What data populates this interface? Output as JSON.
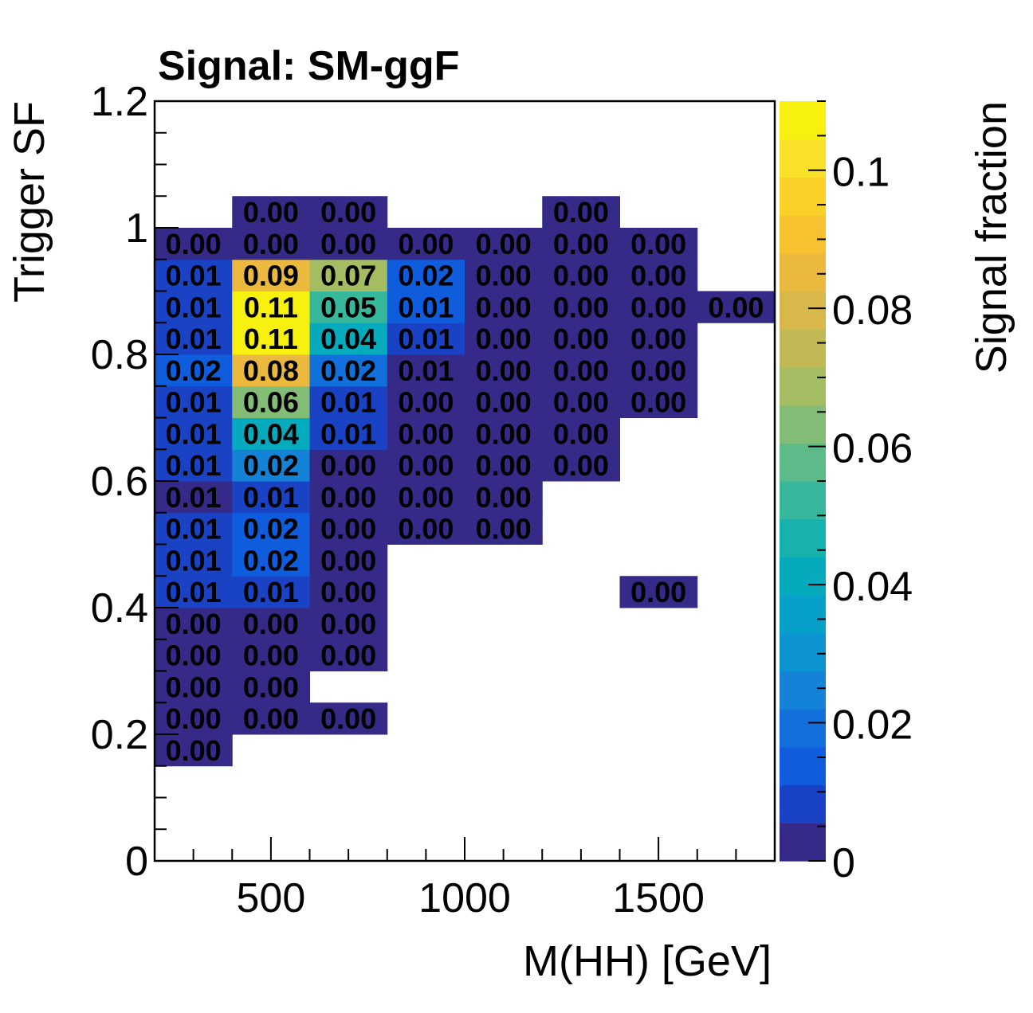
{
  "chart_data": {
    "type": "heatmap",
    "title": "Signal: SM-ggF",
    "xlabel": "M(HH) [GeV]",
    "ylabel": "Trigger SF",
    "zlabel": "Signal fraction",
    "xlim": [
      200,
      1800
    ],
    "ylim": [
      0,
      1.2
    ],
    "zlim": [
      0,
      0.11
    ],
    "x_bin_edges": [
      200,
      400,
      600,
      800,
      1000,
      1200,
      1400,
      1600,
      1800
    ],
    "y_bin_width": 0.05,
    "x_ticks": [
      500,
      1000,
      1500
    ],
    "x_tick_labels": [
      "500",
      "1000",
      "1500"
    ],
    "y_ticks": [
      0,
      0.2,
      0.4,
      0.6,
      0.8,
      1,
      1.2
    ],
    "y_tick_labels": [
      "0",
      "0.2",
      "0.4",
      "0.6",
      "0.8",
      "1",
      "1.2"
    ],
    "z_ticks": [
      0,
      0.02,
      0.04,
      0.06,
      0.08,
      0.1
    ],
    "z_tick_labels": [
      "0",
      "0.02",
      "0.04",
      "0.06",
      "0.08",
      "0.1"
    ],
    "palette": [
      "#352a87",
      "#1a42c5",
      "#0f5cdd",
      "#1270dc",
      "#1382d7",
      "#0b93d2",
      "#07a0c9",
      "#05aabd",
      "#17b2ad",
      "#37b89c",
      "#5cbb88",
      "#82bc75",
      "#a4bc62",
      "#c1b956",
      "#d8b84b",
      "#ebb93d",
      "#f6c22f",
      "#fbd128",
      "#f9e12a",
      "#f8f00f"
    ],
    "cells": [
      {
        "x": 300,
        "y": 0.175,
        "value": 0.002,
        "label": "0.00"
      },
      {
        "x": 300,
        "y": 0.225,
        "value": 0.002,
        "label": "0.00"
      },
      {
        "x": 500,
        "y": 0.225,
        "value": 0.002,
        "label": "0.00"
      },
      {
        "x": 700,
        "y": 0.225,
        "value": 0.002,
        "label": "0.00"
      },
      {
        "x": 300,
        "y": 0.275,
        "value": 0.002,
        "label": "0.00"
      },
      {
        "x": 500,
        "y": 0.275,
        "value": 0.002,
        "label": "0.00"
      },
      {
        "x": 300,
        "y": 0.325,
        "value": 0.002,
        "label": "0.00"
      },
      {
        "x": 500,
        "y": 0.325,
        "value": 0.002,
        "label": "0.00"
      },
      {
        "x": 700,
        "y": 0.325,
        "value": 0.002,
        "label": "0.00"
      },
      {
        "x": 300,
        "y": 0.375,
        "value": 0.002,
        "label": "0.00"
      },
      {
        "x": 500,
        "y": 0.375,
        "value": 0.002,
        "label": "0.00"
      },
      {
        "x": 700,
        "y": 0.375,
        "value": 0.002,
        "label": "0.00"
      },
      {
        "x": 300,
        "y": 0.425,
        "value": 0.008,
        "label": "0.01"
      },
      {
        "x": 500,
        "y": 0.425,
        "value": 0.008,
        "label": "0.01"
      },
      {
        "x": 700,
        "y": 0.425,
        "value": 0.002,
        "label": "0.00"
      },
      {
        "x": 1500,
        "y": 0.425,
        "value": 0.002,
        "label": "0.00"
      },
      {
        "x": 300,
        "y": 0.475,
        "value": 0.011,
        "label": "0.01"
      },
      {
        "x": 500,
        "y": 0.475,
        "value": 0.015,
        "label": "0.02"
      },
      {
        "x": 700,
        "y": 0.475,
        "value": 0.002,
        "label": "0.00"
      },
      {
        "x": 300,
        "y": 0.525,
        "value": 0.011,
        "label": "0.01"
      },
      {
        "x": 500,
        "y": 0.525,
        "value": 0.015,
        "label": "0.02"
      },
      {
        "x": 700,
        "y": 0.525,
        "value": 0.002,
        "label": "0.00"
      },
      {
        "x": 900,
        "y": 0.525,
        "value": 0.002,
        "label": "0.00"
      },
      {
        "x": 1100,
        "y": 0.525,
        "value": 0.002,
        "label": "0.00"
      },
      {
        "x": 300,
        "y": 0.575,
        "value": 0.005,
        "label": "0.01"
      },
      {
        "x": 500,
        "y": 0.575,
        "value": 0.01,
        "label": "0.01"
      },
      {
        "x": 700,
        "y": 0.575,
        "value": 0.002,
        "label": "0.00"
      },
      {
        "x": 900,
        "y": 0.575,
        "value": 0.002,
        "label": "0.00"
      },
      {
        "x": 1100,
        "y": 0.575,
        "value": 0.002,
        "label": "0.00"
      },
      {
        "x": 300,
        "y": 0.625,
        "value": 0.01,
        "label": "0.01"
      },
      {
        "x": 500,
        "y": 0.625,
        "value": 0.024,
        "label": "0.02"
      },
      {
        "x": 700,
        "y": 0.625,
        "value": 0.002,
        "label": "0.00"
      },
      {
        "x": 900,
        "y": 0.625,
        "value": 0.002,
        "label": "0.00"
      },
      {
        "x": 1100,
        "y": 0.625,
        "value": 0.002,
        "label": "0.00"
      },
      {
        "x": 1300,
        "y": 0.625,
        "value": 0.002,
        "label": "0.00"
      },
      {
        "x": 300,
        "y": 0.675,
        "value": 0.011,
        "label": "0.01"
      },
      {
        "x": 500,
        "y": 0.675,
        "value": 0.044,
        "label": "0.04"
      },
      {
        "x": 700,
        "y": 0.675,
        "value": 0.008,
        "label": "0.01"
      },
      {
        "x": 900,
        "y": 0.675,
        "value": 0.002,
        "label": "0.00"
      },
      {
        "x": 1100,
        "y": 0.675,
        "value": 0.002,
        "label": "0.00"
      },
      {
        "x": 1300,
        "y": 0.675,
        "value": 0.002,
        "label": "0.00"
      },
      {
        "x": 300,
        "y": 0.725,
        "value": 0.011,
        "label": "0.01"
      },
      {
        "x": 500,
        "y": 0.725,
        "value": 0.063,
        "label": "0.06"
      },
      {
        "x": 700,
        "y": 0.725,
        "value": 0.011,
        "label": "0.01"
      },
      {
        "x": 900,
        "y": 0.725,
        "value": 0.002,
        "label": "0.00"
      },
      {
        "x": 1100,
        "y": 0.725,
        "value": 0.002,
        "label": "0.00"
      },
      {
        "x": 1300,
        "y": 0.725,
        "value": 0.002,
        "label": "0.00"
      },
      {
        "x": 1500,
        "y": 0.725,
        "value": 0.002,
        "label": "0.00"
      },
      {
        "x": 300,
        "y": 0.775,
        "value": 0.016,
        "label": "0.02"
      },
      {
        "x": 500,
        "y": 0.775,
        "value": 0.083,
        "label": "0.08"
      },
      {
        "x": 700,
        "y": 0.775,
        "value": 0.02,
        "label": "0.02"
      },
      {
        "x": 900,
        "y": 0.775,
        "value": 0.005,
        "label": "0.01"
      },
      {
        "x": 1100,
        "y": 0.775,
        "value": 0.002,
        "label": "0.00"
      },
      {
        "x": 1300,
        "y": 0.775,
        "value": 0.002,
        "label": "0.00"
      },
      {
        "x": 1500,
        "y": 0.775,
        "value": 0.002,
        "label": "0.00"
      },
      {
        "x": 300,
        "y": 0.825,
        "value": 0.011,
        "label": "0.01"
      },
      {
        "x": 500,
        "y": 0.825,
        "value": 0.108,
        "label": "0.11"
      },
      {
        "x": 700,
        "y": 0.825,
        "value": 0.04,
        "label": "0.04"
      },
      {
        "x": 900,
        "y": 0.825,
        "value": 0.008,
        "label": "0.01"
      },
      {
        "x": 1100,
        "y": 0.825,
        "value": 0.002,
        "label": "0.00"
      },
      {
        "x": 1300,
        "y": 0.825,
        "value": 0.002,
        "label": "0.00"
      },
      {
        "x": 1500,
        "y": 0.825,
        "value": 0.002,
        "label": "0.00"
      },
      {
        "x": 300,
        "y": 0.875,
        "value": 0.011,
        "label": "0.01"
      },
      {
        "x": 500,
        "y": 0.875,
        "value": 0.108,
        "label": "0.11"
      },
      {
        "x": 700,
        "y": 0.875,
        "value": 0.052,
        "label": "0.05"
      },
      {
        "x": 900,
        "y": 0.875,
        "value": 0.013,
        "label": "0.01"
      },
      {
        "x": 1100,
        "y": 0.875,
        "value": 0.002,
        "label": "0.00"
      },
      {
        "x": 1300,
        "y": 0.875,
        "value": 0.002,
        "label": "0.00"
      },
      {
        "x": 1500,
        "y": 0.875,
        "value": 0.002,
        "label": "0.00"
      },
      {
        "x": 1700,
        "y": 0.875,
        "value": 0.002,
        "label": "0.00"
      },
      {
        "x": 300,
        "y": 0.925,
        "value": 0.011,
        "label": "0.01"
      },
      {
        "x": 500,
        "y": 0.925,
        "value": 0.088,
        "label": "0.09"
      },
      {
        "x": 700,
        "y": 0.925,
        "value": 0.071,
        "label": "0.07"
      },
      {
        "x": 900,
        "y": 0.925,
        "value": 0.016,
        "label": "0.02"
      },
      {
        "x": 1100,
        "y": 0.925,
        "value": 0.002,
        "label": "0.00"
      },
      {
        "x": 1300,
        "y": 0.925,
        "value": 0.002,
        "label": "0.00"
      },
      {
        "x": 1500,
        "y": 0.925,
        "value": 0.002,
        "label": "0.00"
      },
      {
        "x": 300,
        "y": 0.975,
        "value": 0.002,
        "label": "0.00"
      },
      {
        "x": 500,
        "y": 0.975,
        "value": 0.002,
        "label": "0.00"
      },
      {
        "x": 700,
        "y": 0.975,
        "value": 0.002,
        "label": "0.00"
      },
      {
        "x": 900,
        "y": 0.975,
        "value": 0.002,
        "label": "0.00"
      },
      {
        "x": 1100,
        "y": 0.975,
        "value": 0.002,
        "label": "0.00"
      },
      {
        "x": 1300,
        "y": 0.975,
        "value": 0.002,
        "label": "0.00"
      },
      {
        "x": 1500,
        "y": 0.975,
        "value": 0.002,
        "label": "0.00"
      },
      {
        "x": 500,
        "y": 1.025,
        "value": 0.002,
        "label": "0.00"
      },
      {
        "x": 700,
        "y": 1.025,
        "value": 0.002,
        "label": "0.00"
      },
      {
        "x": 1300,
        "y": 1.025,
        "value": 0.002,
        "label": "0.00"
      }
    ]
  }
}
